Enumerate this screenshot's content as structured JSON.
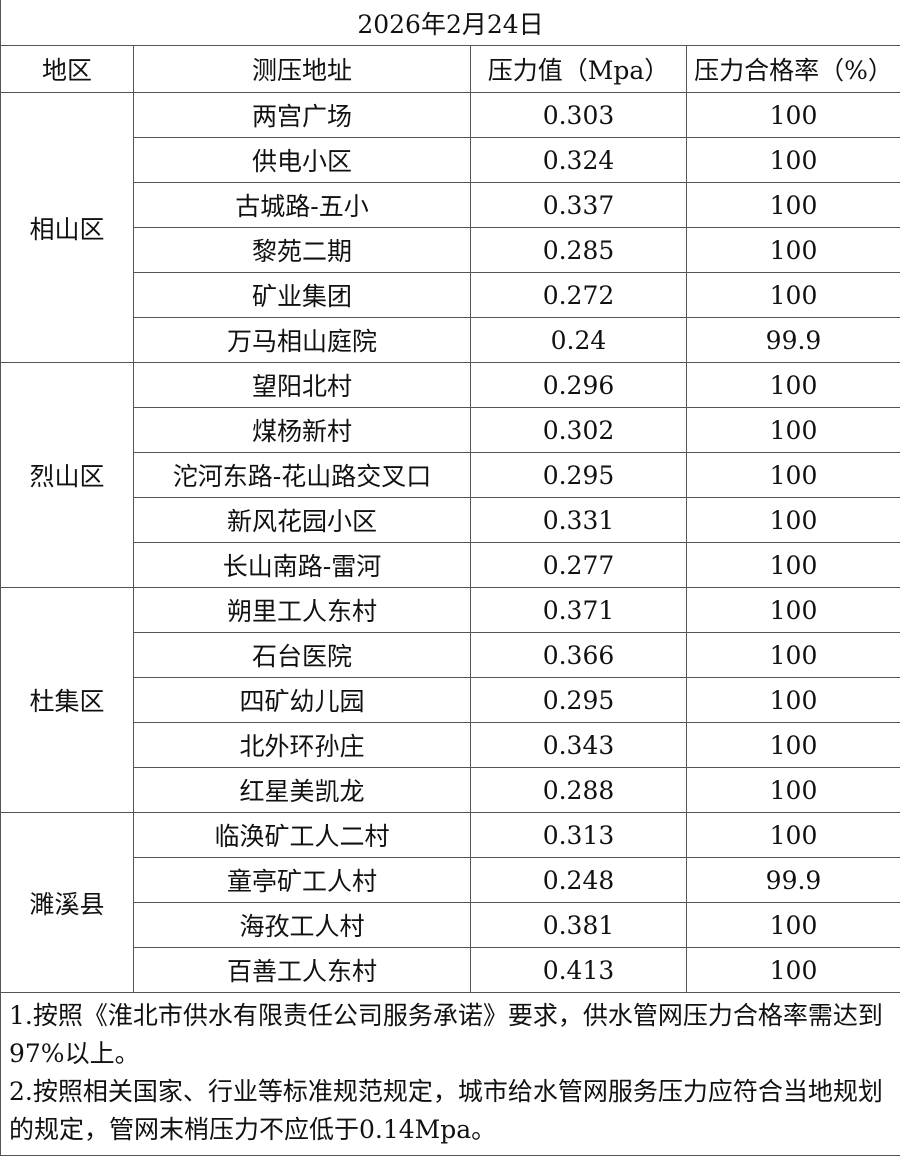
{
  "title": "2026年2月24日",
  "headers": [
    "地区",
    "测压地址",
    "压力值（Mpa）",
    "压力合格率（%）"
  ],
  "regions": [
    {
      "name": "相山区",
      "rows": [
        [
          "两宫广场",
          "0.303",
          "100"
        ],
        [
          "供电小区",
          "0.324",
          "100"
        ],
        [
          "古城路-五小",
          "0.337",
          "100"
        ],
        [
          "黎苑二期",
          "0.285",
          "100"
        ],
        [
          "矿业集团",
          "0.272",
          "100"
        ],
        [
          "万马相山庭院",
          "0.24",
          "99.9"
        ]
      ]
    },
    {
      "name": "烈山区",
      "rows": [
        [
          "望阳北村",
          "0.296",
          "100"
        ],
        [
          "煤杨新村",
          "0.302",
          "100"
        ],
        [
          "沱河东路-花山路交叉口",
          "0.295",
          "100"
        ],
        [
          "新风花园小区",
          "0.331",
          "100"
        ],
        [
          "长山南路-雷河",
          "0.277",
          "100"
        ]
      ]
    },
    {
      "name": "杜集区",
      "rows": [
        [
          "朔里工人东村",
          "0.371",
          "100"
        ],
        [
          "石台医院",
          "0.366",
          "100"
        ],
        [
          "四矿幼儿园",
          "0.295",
          "100"
        ],
        [
          "北外环孙庄",
          "0.343",
          "100"
        ],
        [
          "红星美凯龙",
          "0.288",
          "100"
        ]
      ]
    },
    {
      "name": "濉溪县",
      "rows": [
        [
          "临涣矿工人二村",
          "0.313",
          "100"
        ],
        [
          "童亭矿工人村",
          "0.248",
          "99.9"
        ],
        [
          "海孜工人村",
          "0.381",
          "100"
        ],
        [
          "百善工人东村",
          "0.413",
          "100"
        ]
      ]
    }
  ],
  "notes": [
    "1.按照《淮北市供水有限责任公司服务承诺》要求，供水管网压力合格率需达到97%以上。",
    "2.按照相关国家、行业等标准规范规定，城市给水管网服务压力应符合当地规划的规定，管网末梢压力不应低于0.14Mpa。"
  ]
}
